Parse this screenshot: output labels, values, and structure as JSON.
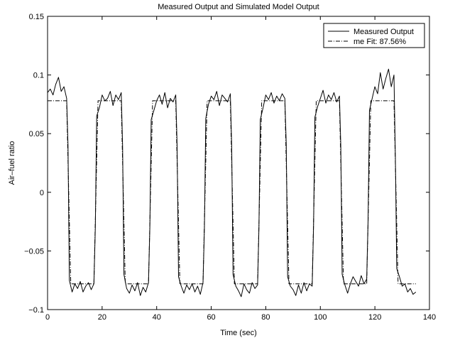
{
  "chart_data": {
    "type": "line",
    "title": "Measured Output and Simulated Model Output",
    "xlabel": "Time (sec)",
    "ylabel": "Air–fuel ratio",
    "xlim": [
      0,
      140
    ],
    "ylim": [
      -0.1,
      0.15
    ],
    "xticks": [
      0,
      20,
      40,
      60,
      80,
      100,
      120,
      140
    ],
    "yticks": [
      -0.1,
      -0.05,
      0,
      0.05,
      0.1,
      0.15
    ],
    "xtick_labels": [
      "0",
      "20",
      "40",
      "60",
      "80",
      "100",
      "120",
      "140"
    ],
    "ytick_labels": [
      "−0.1",
      "−0.05",
      "0",
      "0.05",
      "0.1",
      "0.15"
    ],
    "grid": false,
    "legend_position": "top-right",
    "series": [
      {
        "name": "Measured Output",
        "style": "solid",
        "x": [
          0,
          1,
          2,
          3,
          4,
          5,
          6,
          7,
          7.5,
          8,
          9,
          10,
          11,
          12,
          13,
          14,
          15,
          16,
          17,
          17.5,
          18,
          19,
          20,
          21,
          22,
          23,
          24,
          25,
          26,
          27,
          27.5,
          28,
          29,
          30,
          31,
          32,
          33,
          34,
          35,
          36,
          37,
          37.5,
          38,
          39,
          40,
          41,
          42,
          43,
          44,
          45,
          46,
          47,
          47.5,
          48,
          49,
          50,
          51,
          52,
          53,
          54,
          55,
          56,
          57,
          57.5,
          58,
          59,
          60,
          61,
          62,
          63,
          64,
          65,
          66,
          67,
          67.5,
          68,
          69,
          70,
          71,
          72,
          73,
          74,
          75,
          76,
          77,
          77.5,
          78,
          79,
          80,
          81,
          82,
          83,
          84,
          85,
          86,
          87,
          87.5,
          88,
          89,
          90,
          91,
          92,
          93,
          94,
          95,
          96,
          97,
          97.5,
          98,
          99,
          100,
          101,
          102,
          103,
          104,
          105,
          106,
          107,
          107.5,
          108,
          109,
          110,
          111,
          112,
          113,
          114,
          115,
          116,
          117,
          117.5,
          118,
          119,
          120,
          121,
          122,
          123,
          124,
          125,
          126,
          127,
          127.5,
          128,
          129,
          130,
          131,
          132,
          133,
          134,
          135
        ],
        "values": [
          0.085,
          0.088,
          0.083,
          0.092,
          0.098,
          0.086,
          0.09,
          0.08,
          0.04,
          -0.075,
          -0.085,
          -0.078,
          -0.082,
          -0.076,
          -0.085,
          -0.08,
          -0.077,
          -0.083,
          -0.078,
          -0.03,
          0.065,
          0.072,
          0.083,
          0.078,
          0.08,
          0.086,
          0.074,
          0.083,
          0.079,
          0.085,
          0.04,
          -0.07,
          -0.082,
          -0.086,
          -0.079,
          -0.084,
          -0.077,
          -0.088,
          -0.081,
          -0.085,
          -0.077,
          -0.03,
          0.062,
          0.07,
          0.078,
          0.083,
          0.075,
          0.085,
          0.072,
          0.08,
          0.077,
          0.083,
          0.04,
          -0.072,
          -0.08,
          -0.086,
          -0.079,
          -0.083,
          -0.078,
          -0.085,
          -0.08,
          -0.087,
          -0.077,
          -0.03,
          0.063,
          0.075,
          0.082,
          0.079,
          0.086,
          0.074,
          0.083,
          0.08,
          0.077,
          0.084,
          0.04,
          -0.07,
          -0.08,
          -0.084,
          -0.089,
          -0.078,
          -0.083,
          -0.086,
          -0.077,
          -0.082,
          -0.079,
          -0.03,
          0.062,
          0.072,
          0.083,
          0.079,
          0.085,
          0.076,
          0.082,
          0.078,
          0.084,
          0.08,
          0.04,
          -0.072,
          -0.08,
          -0.083,
          -0.088,
          -0.079,
          -0.086,
          -0.077,
          -0.084,
          -0.078,
          -0.08,
          -0.03,
          0.064,
          0.073,
          0.08,
          0.087,
          0.076,
          0.083,
          0.079,
          0.085,
          0.077,
          0.082,
          0.04,
          -0.07,
          -0.079,
          -0.086,
          -0.078,
          -0.072,
          -0.076,
          -0.08,
          -0.071,
          -0.078,
          -0.074,
          -0.025,
          0.07,
          0.08,
          0.09,
          0.084,
          0.102,
          0.088,
          0.097,
          0.105,
          0.09,
          0.1,
          0.03,
          -0.065,
          -0.072,
          -0.08,
          -0.078,
          -0.085,
          -0.082,
          -0.087,
          -0.085
        ]
      },
      {
        "name": "me Fit: 87.56%",
        "style": "dashdot",
        "x": [
          0,
          7,
          8.5,
          17,
          18.5,
          27,
          28.5,
          37,
          38.5,
          47,
          48.5,
          57,
          58.5,
          67,
          68.5,
          77,
          78.5,
          87,
          88.5,
          97,
          98.5,
          107,
          108.5,
          117,
          118.5,
          127,
          128.5,
          134,
          135
        ],
        "values": [
          0.078,
          0.078,
          -0.078,
          -0.078,
          0.078,
          0.078,
          -0.078,
          -0.078,
          0.078,
          0.078,
          -0.078,
          -0.078,
          0.078,
          0.078,
          -0.078,
          -0.078,
          0.078,
          0.078,
          -0.078,
          -0.078,
          0.078,
          0.078,
          -0.078,
          -0.078,
          0.078,
          0.078,
          -0.078,
          -0.078,
          -0.078
        ]
      }
    ]
  }
}
